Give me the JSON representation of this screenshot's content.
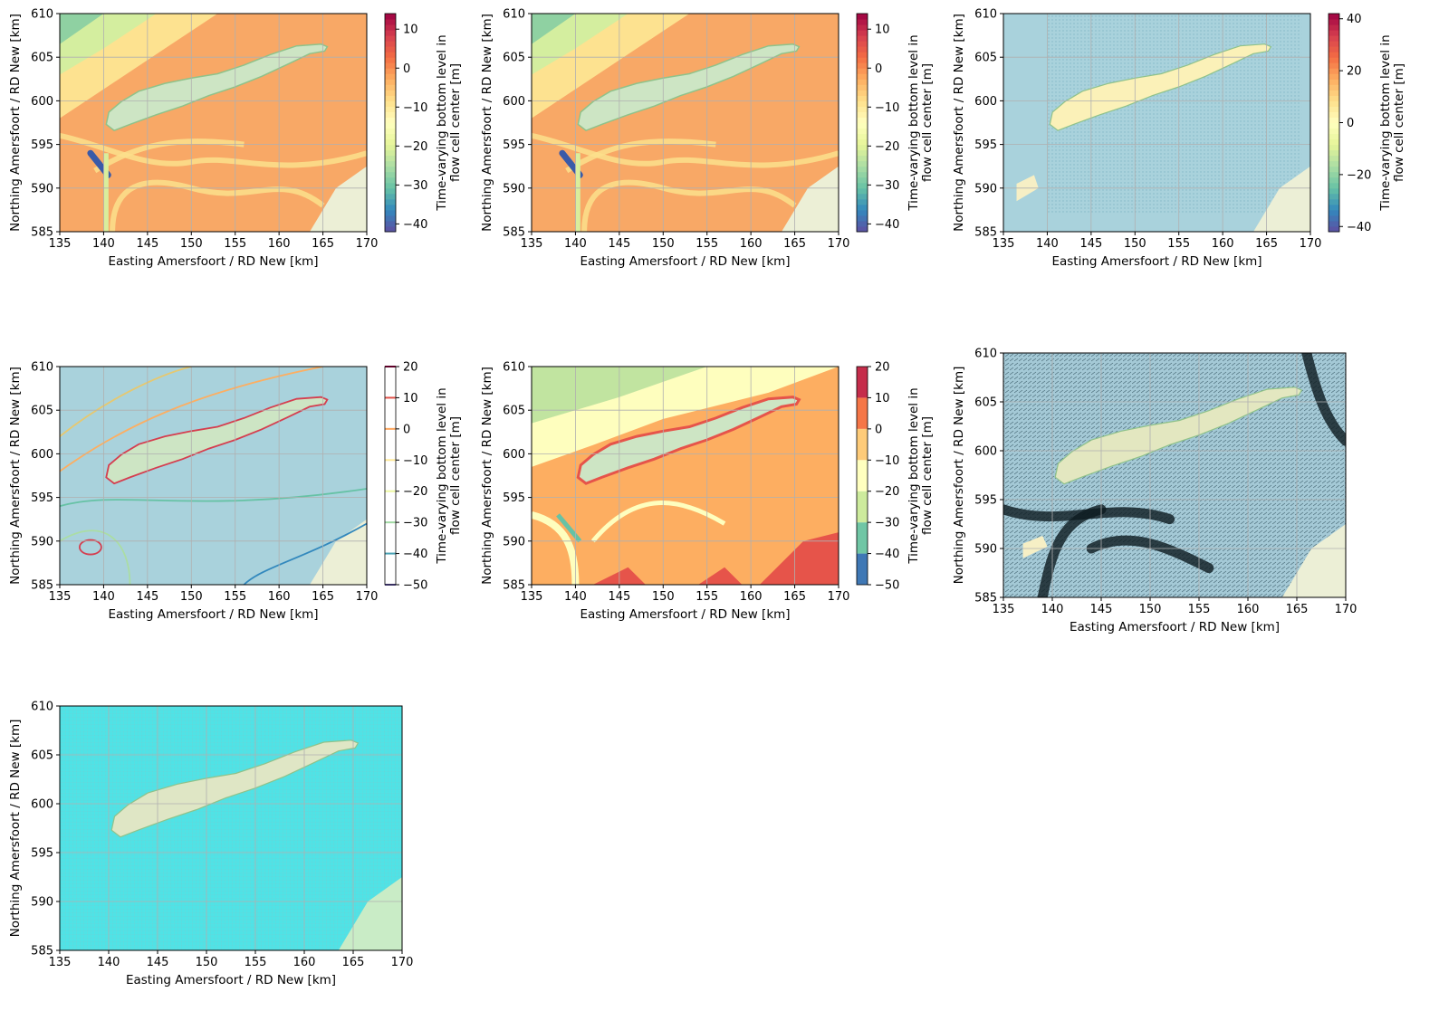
{
  "figure": {
    "xlabel": "Easting Amersfoort / RD New [km]",
    "ylabel": "Northing Amersfoort / RD New [km]",
    "xlim": [
      135,
      170
    ],
    "ylim": [
      585,
      610
    ],
    "xticks": [
      "135",
      "140",
      "145",
      "150",
      "155",
      "160",
      "165",
      "170"
    ],
    "yticks": [
      "585",
      "590",
      "595",
      "600",
      "605",
      "610"
    ],
    "cbar_label_line1": "Time-varying bottom level in",
    "cbar_label_line2": "flow cell center [m]"
  },
  "colors": {
    "land": "#ecefd6",
    "island": "#cde5c4",
    "island_edge": "#8fc28a",
    "sea": "#a9d2dc",
    "grid": "#b0b0b0",
    "cyan_grid": "#4fe3e6"
  },
  "chart_data": [
    {
      "id": "p1",
      "type": "heatmap",
      "style": "pcolormesh",
      "cbar_ticks": [
        "10",
        "0",
        "−10",
        "−20",
        "−30",
        "−40"
      ],
      "cbar_values": [
        10,
        0,
        -10,
        -20,
        -30,
        -40
      ],
      "cbar_range": [
        -42,
        14
      ],
      "cmap": "Spectral_r"
    },
    {
      "id": "p2",
      "type": "heatmap",
      "style": "pcolormesh",
      "cbar_ticks": [
        "10",
        "0",
        "−10",
        "−20",
        "−30",
        "−40"
      ],
      "cbar_values": [
        10,
        0,
        -10,
        -20,
        -30,
        -40
      ],
      "cbar_range": [
        -42,
        14
      ],
      "cmap": "Spectral_r"
    },
    {
      "id": "p3",
      "type": "heatmap",
      "style": "faces-scatter",
      "cbar_ticks": [
        "40",
        "20",
        "0",
        "−20",
        "−40"
      ],
      "cbar_values": [
        40,
        20,
        0,
        -20,
        -40
      ],
      "cbar_range": [
        -42,
        42
      ],
      "cmap": "Spectral_r"
    },
    {
      "id": "p4",
      "type": "heatmap",
      "style": "contour",
      "cbar_ticks": [
        "20",
        "10",
        "0",
        "−10",
        "−20",
        "−30",
        "−40",
        "−50"
      ],
      "cbar_values": [
        20,
        10,
        0,
        -10,
        -20,
        -30,
        -40,
        -50
      ],
      "cbar_range": [
        -50,
        20
      ],
      "levels": [
        -50,
        -40,
        -30,
        -20,
        -10,
        0,
        10,
        20
      ],
      "cmap": "Spectral_r"
    },
    {
      "id": "p5",
      "type": "heatmap",
      "style": "contourf",
      "cbar_ticks": [
        "20",
        "10",
        "0",
        "−10",
        "−20",
        "−30",
        "−40",
        "−50"
      ],
      "cbar_values": [
        20,
        10,
        0,
        -10,
        -20,
        -30,
        -40,
        -50
      ],
      "cbar_range": [
        -50,
        20
      ],
      "levels": [
        -50,
        -40,
        -30,
        -20,
        -10,
        0,
        10,
        20
      ],
      "cmap": "Spectral_r"
    },
    {
      "id": "p6",
      "type": "heatmap",
      "style": "quiver",
      "cbar_ticks": [],
      "cbar_values": [],
      "cbar_range": null,
      "cmap": null
    },
    {
      "id": "p7",
      "type": "heatmap",
      "style": "grid-mesh",
      "cbar_ticks": [],
      "cbar_values": [],
      "cbar_range": null,
      "cmap": null
    }
  ]
}
